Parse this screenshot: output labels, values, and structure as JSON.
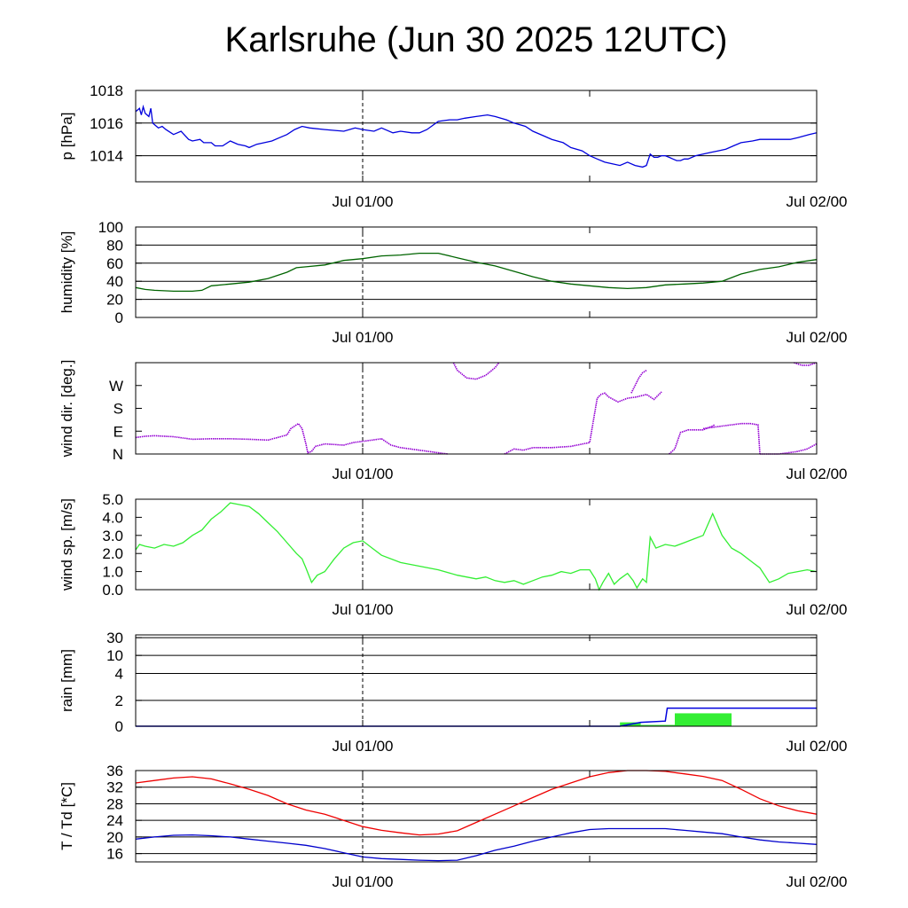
{
  "title": "Karlsruhe (Jun 30 2025 12UTC)",
  "x_axis": {
    "unit": "hours since Jun 30 2025 12UTC",
    "range": [
      0,
      36
    ],
    "tick_labels": [
      {
        "x": 12,
        "label": "Jul 01/00"
      },
      {
        "x": 36,
        "label": "Jul 02/00"
      }
    ],
    "minor_ticks": [
      24
    ],
    "marker_dashed_at": 12
  },
  "colors": {
    "pressure": "#0000dd",
    "humidity": "#006400",
    "wind_dir": "#9400d3",
    "wind_speed": "#33ee33",
    "rain_bar": "#33ee33",
    "rain_cumulative": "#0000dd",
    "temperature": "#ee0000",
    "dewpoint": "#0000cc"
  },
  "chart_data": [
    {
      "type": "line",
      "ylabel": "p [hPa]",
      "ylim": [
        1012.4,
        1018
      ],
      "yticks": [
        {
          "v": 1014,
          "label": "1014"
        },
        {
          "v": 1016,
          "label": "1016"
        },
        {
          "v": 1018,
          "label": "1018"
        }
      ],
      "grid_y": [
        1014,
        1016
      ],
      "series": [
        {
          "color_key": "pressure",
          "x": [
            0,
            0.2,
            0.3,
            0.4,
            0.5,
            0.7,
            0.8,
            0.9,
            1.0,
            1.2,
            1.4,
            1.6,
            2.0,
            2.4,
            2.8,
            3.0,
            3.4,
            3.6,
            4.0,
            4.2,
            4.6,
            5.0,
            5.4,
            5.8,
            6.0,
            6.4,
            6.8,
            7.2,
            7.6,
            8.0,
            8.4,
            8.8,
            9.2,
            10,
            11,
            11.6,
            12,
            12.6,
            13,
            13.6,
            14,
            14.6,
            15,
            15.4,
            16,
            16.6,
            17,
            17.4,
            18,
            18.6,
            19,
            19.6,
            20,
            20.6,
            21,
            21.6,
            22,
            22.6,
            23,
            23.6,
            24.0,
            24.4,
            24.8,
            25.2,
            25.6,
            26.0,
            26.4,
            26.8,
            27.0,
            27.2,
            27.4,
            27.6,
            27.8,
            28.0,
            28.2,
            28.4,
            28.6,
            28.8,
            29.0,
            29.2,
            29.6,
            30.0,
            30.4,
            30.8,
            31.2,
            31.6,
            32.0,
            32.6,
            33.0,
            33.6,
            34.0,
            34.6,
            35.0,
            35.6,
            36.0
          ],
          "y": [
            1016.7,
            1016.9,
            1016.5,
            1017.0,
            1016.6,
            1016.4,
            1016.9,
            1016.0,
            1015.9,
            1015.7,
            1015.8,
            1015.6,
            1015.3,
            1015.5,
            1015.0,
            1014.9,
            1015.0,
            1014.8,
            1014.8,
            1014.6,
            1014.6,
            1014.9,
            1014.7,
            1014.6,
            1014.5,
            1014.7,
            1014.8,
            1014.9,
            1015.1,
            1015.3,
            1015.6,
            1015.8,
            1015.7,
            1015.6,
            1015.5,
            1015.7,
            1015.6,
            1015.5,
            1015.7,
            1015.4,
            1015.5,
            1015.4,
            1015.4,
            1015.6,
            1016.1,
            1016.2,
            1016.2,
            1016.3,
            1016.4,
            1016.5,
            1016.4,
            1016.2,
            1016.0,
            1015.8,
            1015.5,
            1015.2,
            1015.0,
            1014.8,
            1014.5,
            1014.3,
            1014.0,
            1013.8,
            1013.6,
            1013.5,
            1013.4,
            1013.6,
            1013.4,
            1013.3,
            1013.4,
            1014.1,
            1013.9,
            1013.9,
            1014.0,
            1014.0,
            1013.9,
            1013.8,
            1013.7,
            1013.7,
            1013.8,
            1013.8,
            1014.0,
            1014.1,
            1014.2,
            1014.3,
            1014.4,
            1014.6,
            1014.8,
            1014.9,
            1015.0,
            1015.0,
            1015.0,
            1015.0,
            1015.1,
            1015.3,
            1015.4
          ]
        }
      ]
    },
    {
      "type": "line",
      "ylabel": "humidity [%]",
      "ylim": [
        0,
        100
      ],
      "yticks": [
        {
          "v": 0,
          "label": "0"
        },
        {
          "v": 20,
          "label": "20"
        },
        {
          "v": 40,
          "label": "40"
        },
        {
          "v": 60,
          "label": "60"
        },
        {
          "v": 80,
          "label": "80"
        },
        {
          "v": 100,
          "label": "100"
        }
      ],
      "grid_y": [
        20,
        40,
        60,
        80
      ],
      "series": [
        {
          "color_key": "humidity",
          "x": [
            0,
            0.5,
            1.0,
            2.0,
            3.0,
            3.5,
            4.0,
            5.0,
            6.0,
            7.0,
            8.0,
            8.5,
            9.0,
            10.0,
            11.0,
            12.0,
            13.0,
            14.0,
            15.0,
            16.0,
            17.0,
            18.0,
            19.0,
            20.0,
            21.0,
            22.0,
            23.0,
            24.0,
            25.0,
            26.0,
            27.0,
            28.0,
            29.0,
            30.0,
            31.0,
            32.0,
            33.0,
            34.0,
            35.0,
            36.0
          ],
          "y": [
            33,
            31,
            30,
            29,
            29,
            30,
            35,
            37,
            39,
            43,
            50,
            55,
            56,
            58,
            63,
            65,
            68,
            69,
            71,
            71,
            66,
            61,
            57,
            51,
            45,
            40,
            37,
            35,
            33,
            32,
            33,
            36,
            37,
            38,
            40,
            48,
            53,
            56,
            61,
            64
          ]
        }
      ]
    },
    {
      "type": "scatter",
      "ylabel": "wind dir. [deg.]",
      "ylim": [
        0,
        360
      ],
      "yticks": [
        {
          "v": 0,
          "label": "N"
        },
        {
          "v": 90,
          "label": "E"
        },
        {
          "v": 180,
          "label": "S"
        },
        {
          "v": 270,
          "label": "W"
        }
      ],
      "grid_y": [],
      "series": [
        {
          "color_key": "wind_dir",
          "segments": [
            {
              "x": [
                0,
                0.5,
                1.0,
                2.0,
                3.0,
                4.0,
                5.0,
                6.0,
                7.0,
                8.0,
                8.2,
                8.6,
                8.8,
                9.0,
                9.1,
                9.3,
                9.5,
                10.0,
                11.0,
                11.5,
                12.0,
                12.5,
                13.0,
                13.5,
                14.0,
                15.0,
                16.0,
                16.5
              ],
              "y": [
                65,
                70,
                72,
                68,
                58,
                60,
                60,
                58,
                55,
                75,
                100,
                120,
                100,
                40,
                5,
                10,
                30,
                40,
                35,
                45,
                50,
                55,
                60,
                35,
                25,
                15,
                5,
                0
              ]
            },
            {
              "x": [
                16.8,
                17.0,
                17.5,
                18.0,
                18.5,
                19.0,
                19.2
              ],
              "y": [
                360,
                330,
                300,
                295,
                310,
                340,
                360
              ]
            },
            {
              "x": [
                19.5,
                20.0,
                20.5,
                21.0,
                22.0,
                23.0,
                24.0,
                24.4,
                24.6,
                24.8,
                25.0,
                25.5,
                26.0,
                26.5,
                27.0,
                27.2,
                27.4,
                27.6,
                27.8
              ],
              "y": [
                0,
                20,
                15,
                25,
                25,
                30,
                45,
                220,
                235,
                240,
                225,
                205,
                220,
                225,
                235,
                225,
                215,
                230,
                245
              ]
            },
            {
              "x": [
                26.2,
                26.4,
                26.6,
                26.8,
                27.0
              ],
              "y": [
                240,
                270,
                300,
                320,
                330
              ]
            },
            {
              "x": [
                28.2,
                28.5,
                28.8,
                29.0,
                29.2,
                29.6,
                30.0,
                30.3,
                30.5,
                30.6
              ],
              "y": [
                0,
                20,
                85,
                90,
                95,
                95,
                95,
                105,
                110,
                115
              ]
            },
            {
              "x": [
                30.0,
                31.0,
                32.0,
                32.5,
                32.9,
                33.0
              ],
              "y": [
                100,
                110,
                120,
                120,
                115,
                0
              ]
            },
            {
              "x": [
                33.0,
                33.5,
                34.0,
                34.5,
                35.0,
                35.5,
                36.0
              ],
              "y": [
                0,
                0,
                0,
                5,
                10,
                20,
                40
              ]
            },
            {
              "x": [
                34.8,
                35.2,
                35.6,
                36.0
              ],
              "y": [
                360,
                350,
                350,
                360
              ]
            }
          ]
        }
      ]
    },
    {
      "type": "line",
      "ylabel": "wind sp. [m/s]",
      "ylim": [
        0,
        5
      ],
      "yticks": [
        {
          "v": 0,
          "label": "0.0"
        },
        {
          "v": 1,
          "label": "1.0"
        },
        {
          "v": 2,
          "label": "2.0"
        },
        {
          "v": 3,
          "label": "3.0"
        },
        {
          "v": 4,
          "label": "4.0"
        },
        {
          "v": 5,
          "label": "5.0"
        }
      ],
      "grid_y": [],
      "series": [
        {
          "color_key": "wind_speed",
          "x": [
            0,
            0.2,
            0.5,
            1.0,
            1.5,
            2.0,
            2.5,
            3.0,
            3.5,
            4.0,
            4.5,
            5.0,
            5.5,
            6.0,
            6.5,
            7.0,
            7.5,
            8.0,
            8.5,
            8.8,
            9.0,
            9.3,
            9.6,
            10.0,
            10.5,
            11.0,
            11.5,
            12.0,
            12.5,
            13.0,
            14.0,
            15.0,
            16.0,
            17.0,
            18.0,
            18.5,
            19.0,
            19.5,
            20.0,
            20.5,
            21.0,
            21.5,
            22.0,
            22.5,
            23.0,
            23.5,
            24.0,
            24.3,
            24.5,
            24.7,
            25.0,
            25.3,
            25.6,
            26.0,
            26.3,
            26.5,
            26.8,
            27.0,
            27.2,
            27.5,
            28.0,
            28.5,
            29.0,
            29.5,
            30.0,
            30.5,
            31.0,
            31.5,
            32.0,
            32.5,
            33.0,
            33.5,
            34.0,
            34.5,
            35.0,
            35.5,
            36.0
          ],
          "y": [
            2.2,
            2.5,
            2.4,
            2.3,
            2.5,
            2.4,
            2.6,
            3.0,
            3.3,
            3.9,
            4.3,
            4.8,
            4.7,
            4.6,
            4.2,
            3.7,
            3.2,
            2.6,
            2.0,
            1.7,
            1.2,
            0.4,
            0.8,
            1.0,
            1.7,
            2.3,
            2.6,
            2.7,
            2.3,
            1.9,
            1.5,
            1.3,
            1.1,
            0.8,
            0.6,
            0.7,
            0.5,
            0.4,
            0.5,
            0.3,
            0.5,
            0.7,
            0.8,
            1.0,
            0.9,
            1.1,
            1.1,
            0.6,
            0.0,
            0.4,
            0.9,
            0.3,
            0.6,
            0.9,
            0.5,
            0.1,
            0.6,
            0.4,
            2.9,
            2.3,
            2.5,
            2.4,
            2.6,
            2.8,
            3.0,
            4.2,
            3.0,
            2.3,
            2.0,
            1.6,
            1.2,
            0.4,
            0.6,
            0.9,
            1.0,
            1.1,
            1.0
          ]
        }
      ]
    },
    {
      "type": "area",
      "ylabel": "rain [mm]",
      "yticks": [
        {
          "v": 0,
          "label": "0"
        },
        {
          "v": 2,
          "label": "2"
        },
        {
          "v": 4,
          "label": "4"
        },
        {
          "v": 10,
          "label": "10"
        },
        {
          "v": 30,
          "label": "30"
        }
      ],
      "grid_y": [
        2,
        4,
        10,
        30
      ],
      "bars": [
        {
          "x_start": 25.6,
          "x_end": 26.7,
          "value": 0.3
        },
        {
          "x_start": 26.7,
          "x_end": 28.5,
          "value": 0.1
        },
        {
          "x_start": 28.5,
          "x_end": 31.5,
          "value": 1.0
        }
      ],
      "cumulative": {
        "x": [
          0,
          25.6,
          26.7,
          28.0,
          28.1,
          36.0
        ],
        "y": [
          0,
          0,
          0.3,
          0.4,
          1.4,
          1.4
        ]
      }
    },
    {
      "type": "line",
      "ylabel": "T / Td [*C]",
      "ylim": [
        14,
        36
      ],
      "yticks": [
        {
          "v": 16,
          "label": "16"
        },
        {
          "v": 20,
          "label": "20"
        },
        {
          "v": 24,
          "label": "24"
        },
        {
          "v": 28,
          "label": "28"
        },
        {
          "v": 32,
          "label": "32"
        },
        {
          "v": 36,
          "label": "36"
        }
      ],
      "grid_y": [
        16,
        20,
        24,
        28,
        32
      ],
      "series": [
        {
          "color_key": "temperature",
          "x": [
            0,
            1,
            2,
            3,
            4,
            5,
            6,
            7,
            8,
            9,
            10,
            11,
            12,
            13,
            14,
            15,
            16,
            17,
            18,
            19,
            20,
            21,
            22,
            23,
            24,
            25,
            26,
            27,
            28,
            29,
            30,
            31,
            32,
            33,
            34,
            35,
            36
          ],
          "y": [
            33.0,
            33.6,
            34.2,
            34.5,
            34.0,
            32.8,
            31.5,
            30.0,
            28.0,
            26.5,
            25.5,
            24.0,
            22.5,
            21.6,
            21.0,
            20.5,
            20.7,
            21.5,
            23.5,
            25.5,
            27.5,
            29.5,
            31.5,
            33.0,
            34.5,
            35.5,
            36.0,
            36.0,
            35.8,
            35.2,
            34.6,
            33.6,
            31.5,
            29.2,
            27.5,
            26.3,
            25.5
          ]
        },
        {
          "color_key": "dewpoint",
          "x": [
            0,
            1,
            2,
            3,
            4,
            5,
            6,
            7,
            8,
            9,
            10,
            11,
            12,
            13,
            14,
            15,
            16,
            17,
            18,
            19,
            20,
            21,
            22,
            23,
            24,
            25,
            26,
            27,
            28,
            29,
            30,
            31,
            32,
            33,
            34,
            35,
            36
          ],
          "y": [
            19.5,
            20.0,
            20.4,
            20.5,
            20.3,
            20.0,
            19.5,
            19.0,
            18.5,
            18.0,
            17.2,
            16.2,
            15.2,
            14.8,
            14.6,
            14.4,
            14.3,
            14.4,
            15.5,
            16.8,
            17.8,
            19.0,
            20.0,
            21.0,
            21.8,
            22.0,
            22.0,
            22.0,
            22.0,
            21.6,
            21.2,
            20.8,
            20.0,
            19.3,
            18.8,
            18.5,
            18.2
          ]
        }
      ]
    }
  ]
}
